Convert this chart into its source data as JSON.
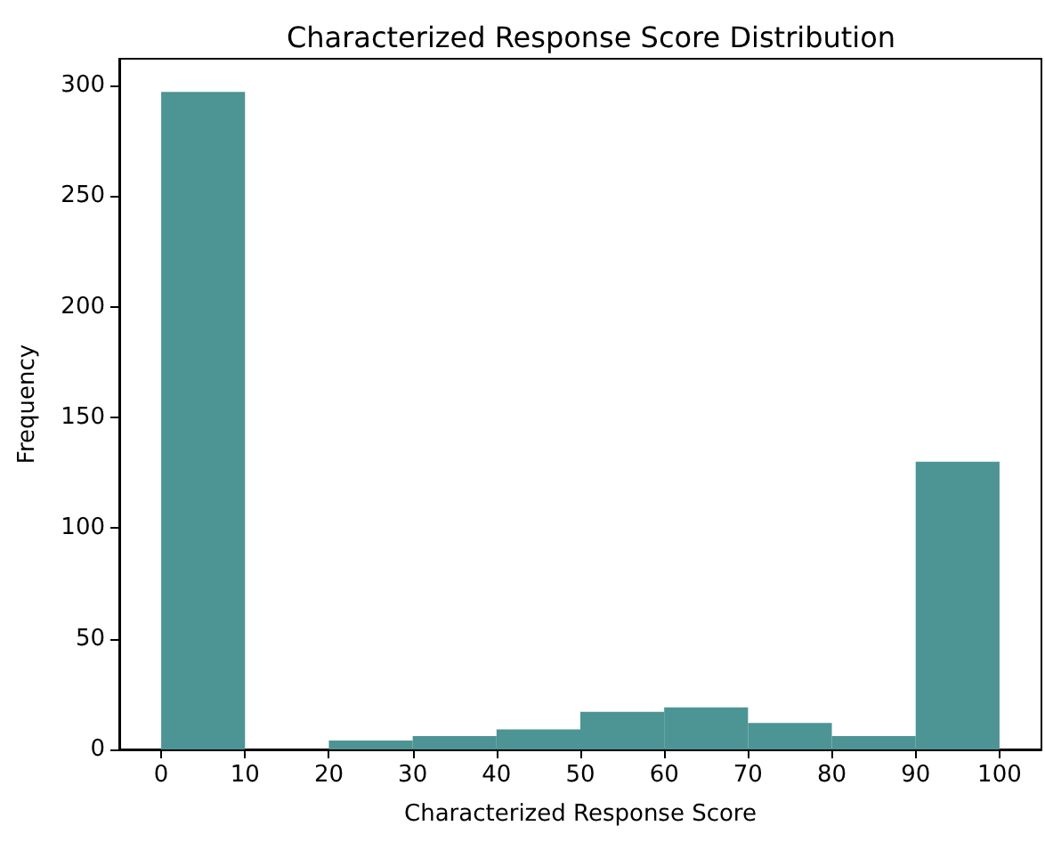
{
  "chart_data": {
    "type": "histogram",
    "title": "Characterized Response Score Distribution",
    "xlabel": "Characterized Response Score",
    "ylabel": "Frequency",
    "bins": [
      0,
      10,
      20,
      30,
      40,
      50,
      60,
      70,
      80,
      90,
      100
    ],
    "values": [
      297,
      0,
      4,
      6,
      9,
      17,
      19,
      12,
      6,
      130
    ],
    "color": "#4d9494",
    "xlim": [
      -5,
      105
    ],
    "xticks": [
      0,
      10,
      20,
      30,
      40,
      50,
      60,
      70,
      80,
      90,
      100
    ],
    "ylim": [
      0,
      312
    ],
    "yticks": [
      0,
      50,
      100,
      150,
      200,
      250,
      300
    ],
    "grid": false
  }
}
